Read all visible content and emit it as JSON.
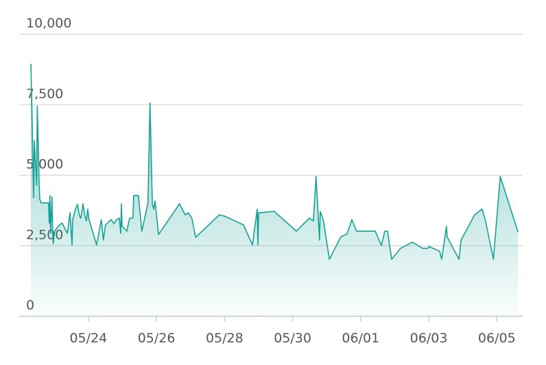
{
  "chart_data": {
    "type": "area",
    "color": "#17a196",
    "grid": true,
    "xlim": [
      22.31,
      36.76
    ],
    "ylim": [
      0,
      10000
    ],
    "yticks": [
      0,
      {
        "value": 2500,
        "label": "2,500"
      },
      {
        "value": 5000,
        "label": "5,000"
      },
      {
        "value": 7500,
        "label": "7,500"
      },
      {
        "value": 10000,
        "label": "10,000"
      }
    ],
    "xticks": [
      {
        "value": 24,
        "label": "05/24"
      },
      {
        "value": 26,
        "label": "05/26"
      },
      {
        "value": 28,
        "label": "05/28"
      },
      {
        "value": 30,
        "label": "05/30"
      },
      {
        "value": 32,
        "label": "06/01"
      },
      {
        "value": 34,
        "label": "06/03"
      },
      {
        "value": 36,
        "label": "06/05"
      }
    ],
    "x": [
      22.31,
      22.35,
      22.39,
      22.41,
      22.45,
      22.48,
      22.5,
      22.55,
      22.57,
      22.61,
      22.83,
      22.85,
      22.87,
      22.89,
      22.93,
      22.95,
      22.97,
      23.01,
      23.11,
      23.23,
      23.38,
      23.46,
      23.52,
      23.54,
      23.62,
      23.68,
      23.74,
      23.78,
      23.84,
      23.9,
      23.94,
      23.98,
      24.02,
      24.24,
      24.38,
      24.44,
      24.5,
      24.67,
      24.75,
      24.83,
      24.91,
      24.95,
      24.97,
      24.99,
      25.13,
      25.21,
      25.31,
      25.33,
      25.47,
      25.57,
      25.75,
      25.81,
      25.88,
      25.92,
      25.96,
      26.06,
      26.68,
      26.84,
      26.94,
      27.04,
      27.15,
      27.85,
      28.01,
      28.56,
      28.82,
      28.96,
      28.98,
      29.0,
      29.46,
      30.11,
      30.49,
      30.61,
      30.69,
      30.79,
      30.81,
      30.9,
      31.08,
      31.42,
      31.6,
      31.74,
      31.88,
      32.43,
      32.61,
      32.71,
      32.79,
      32.91,
      33.17,
      33.52,
      33.82,
      33.98,
      34.0,
      34.32,
      34.38,
      34.52,
      34.54,
      34.89,
      34.95,
      35.35,
      35.57,
      35.67,
      35.9,
      36.1,
      36.62
    ],
    "values": [
      8950,
      6840,
      4210,
      6230,
      5380,
      4650,
      7450,
      4890,
      4160,
      4020,
      4020,
      3310,
      4280,
      2940,
      4230,
      2940,
      2580,
      3020,
      3190,
      3310,
      2940,
      3670,
      2530,
      3430,
      3800,
      3970,
      3550,
      3480,
      3990,
      3550,
      3380,
      3800,
      3430,
      2530,
      3430,
      2700,
      3240,
      3430,
      3280,
      3430,
      3480,
      2940,
      3990,
      3190,
      3020,
      3480,
      3480,
      4280,
      4280,
      3020,
      4020,
      7570,
      3990,
      3800,
      4090,
      2900,
      3990,
      3600,
      3670,
      3480,
      2800,
      3600,
      3550,
      3240,
      2530,
      3800,
      2530,
      3670,
      3720,
      3020,
      3480,
      3380,
      4960,
      2700,
      3720,
      3430,
      2020,
      2820,
      2920,
      3430,
      3020,
      3020,
      2510,
      3020,
      3020,
      2020,
      2410,
      2630,
      2410,
      2410,
      2480,
      2310,
      2020,
      3190,
      2820,
      2020,
      2700,
      3600,
      3800,
      3380,
      2020,
      4960,
      2990
    ]
  }
}
